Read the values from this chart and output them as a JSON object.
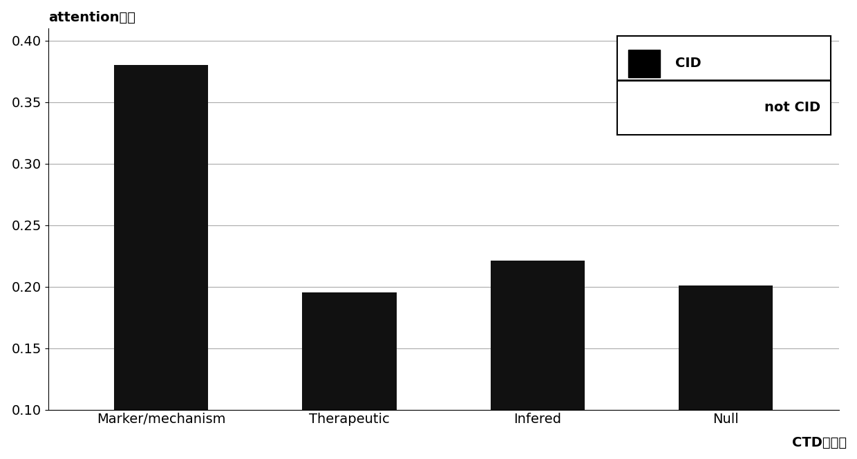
{
  "categories": [
    "Marker/mechanism",
    "Therapeutic",
    "Infered",
    "Null"
  ],
  "values": [
    0.38,
    0.195,
    0.221,
    0.201
  ],
  "bar_color": "#111111",
  "xlabel": "CTD中关系",
  "ylabel": "attention权値",
  "ylim": [
    0.1,
    0.41
  ],
  "yticks": [
    0.1,
    0.15,
    0.2,
    0.25,
    0.3,
    0.35,
    0.4
  ],
  "legend_cid": "CID",
  "legend_notcid": "not CID",
  "background_color": "#ffffff",
  "grid_color": "#aaaaaa",
  "fontsize": 14,
  "bar_width": 0.5
}
